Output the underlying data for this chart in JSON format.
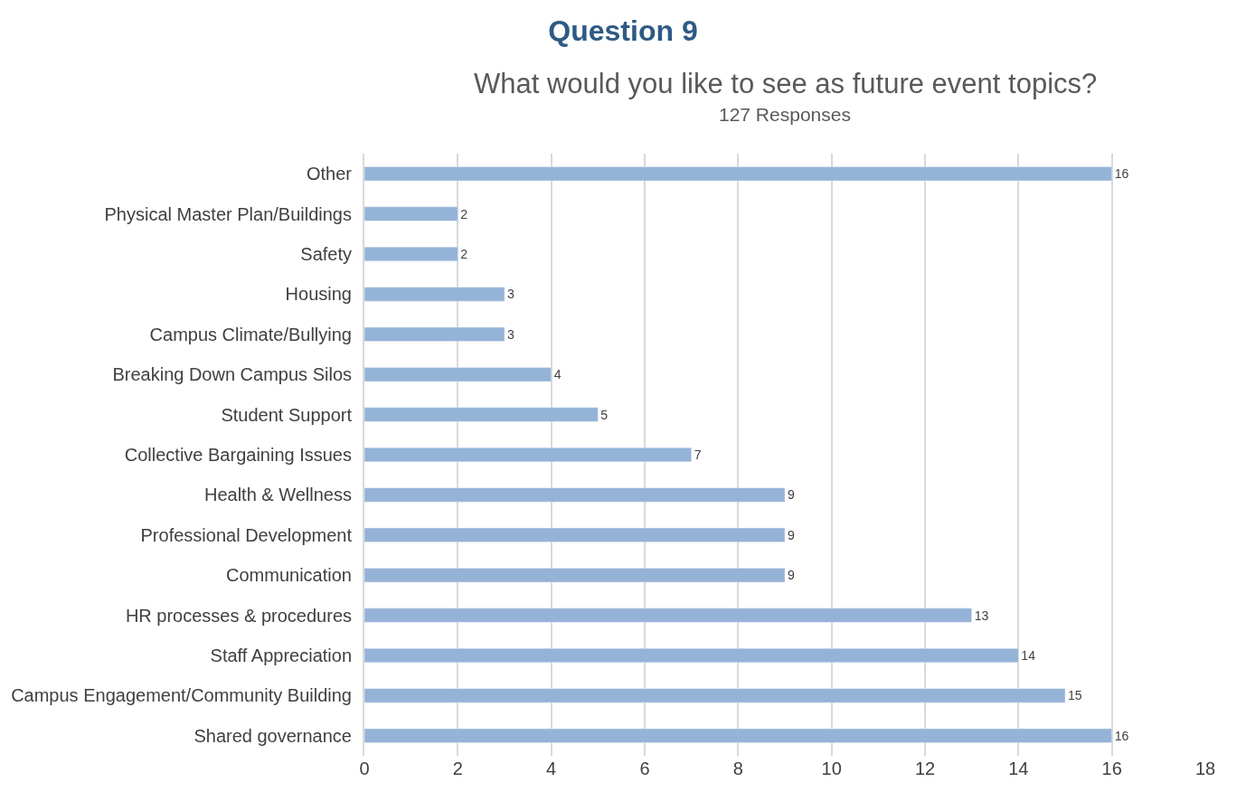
{
  "chart_data": {
    "type": "bar",
    "orientation": "horizontal",
    "title": "Question 9",
    "subtitle": "What would you like to see as future event topics?",
    "annotations": [
      "127 Responses"
    ],
    "categories": [
      "Other",
      "Physical Master Plan/Buildings",
      "Safety",
      "Housing",
      "Campus Climate/Bullying",
      "Breaking Down Campus Silos",
      "Student Support",
      "Collective Bargaining Issues",
      "Health & Wellness",
      "Professional Development",
      "Communication",
      "HR processes & procedures",
      "Staff Appreciation",
      "Campus Engagement/Community Building",
      "Shared governance"
    ],
    "values": [
      16,
      2,
      2,
      3,
      3,
      4,
      5,
      7,
      9,
      9,
      9,
      13,
      14,
      15,
      16
    ],
    "color": "#95b3d7",
    "xlim": [
      0,
      18
    ],
    "xticks": [
      0,
      2,
      4,
      6,
      8,
      10,
      12,
      14,
      16,
      18
    ],
    "grid": "x",
    "legend": false,
    "data_labels": true
  }
}
